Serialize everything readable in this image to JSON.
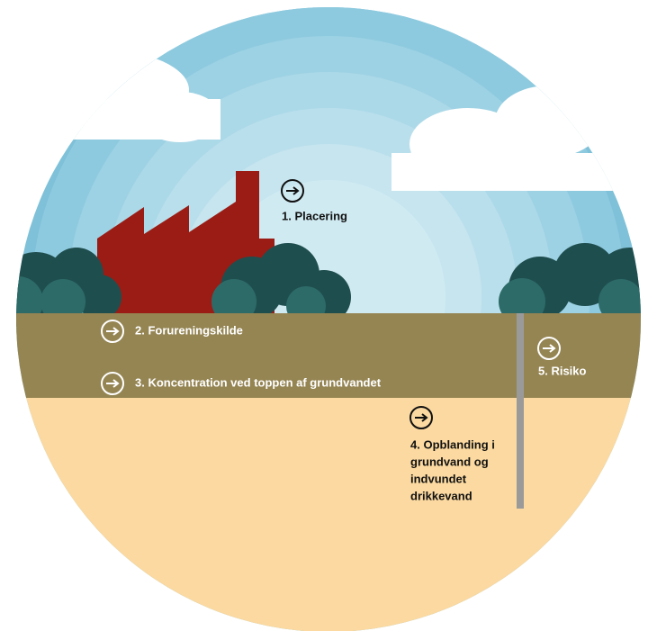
{
  "steps": [
    {
      "label": [
        "1. Placering"
      ]
    },
    {
      "label": [
        "2. Forureningskilde"
      ]
    },
    {
      "label": [
        "3. Koncentration ved toppen af grundvandet"
      ]
    },
    {
      "label": [
        "4. Opblanding i",
        "grundvand og",
        "indvundet",
        "drikkevand"
      ]
    },
    {
      "label": [
        "5. Risiko"
      ]
    }
  ]
}
